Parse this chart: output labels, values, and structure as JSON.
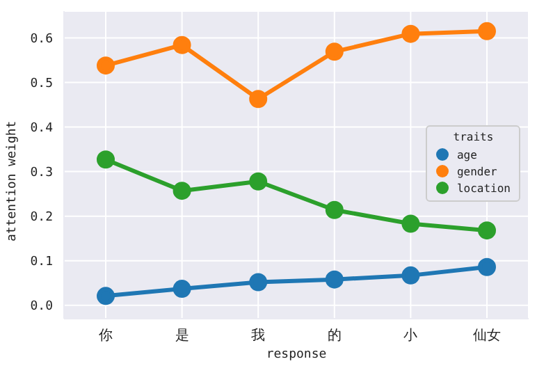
{
  "chart_data": {
    "type": "line",
    "xlabel": "response",
    "ylabel": "attention weight",
    "legend_title": "traits",
    "categories": [
      "你",
      "是",
      "我",
      "的",
      "小",
      "仙女"
    ],
    "series": [
      {
        "name": "age",
        "color": "#1f77b4",
        "values": [
          0.021,
          0.037,
          0.052,
          0.058,
          0.067,
          0.086
        ]
      },
      {
        "name": "gender",
        "color": "#ff7f0e",
        "values": [
          0.538,
          0.584,
          0.463,
          0.569,
          0.609,
          0.615
        ]
      },
      {
        "name": "location",
        "color": "#2ca02c",
        "values": [
          0.327,
          0.257,
          0.278,
          0.214,
          0.183,
          0.168
        ]
      }
    ],
    "ylim": [
      -0.03,
      0.66
    ],
    "yticks": [
      {
        "value": 0,
        "label": "0.0"
      },
      0.1,
      0.2,
      0.3,
      0.4,
      0.5,
      0.6
    ],
    "grid": true,
    "legend": "center right",
    "marker": "circle",
    "line_style": "solid"
  }
}
